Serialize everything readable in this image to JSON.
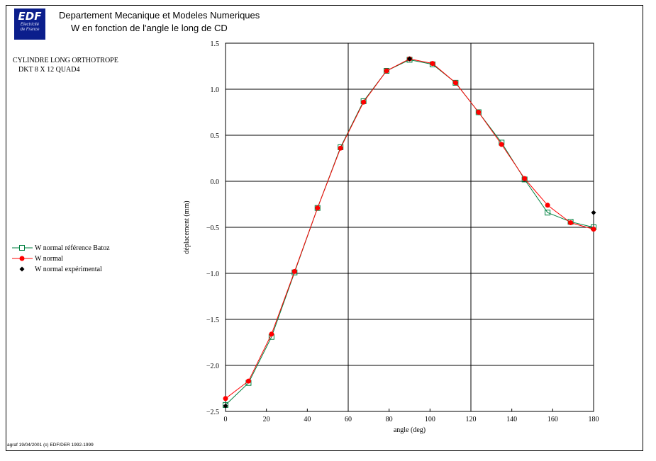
{
  "header": {
    "logo_text": "EDF",
    "logo_sub1": "Electricité",
    "logo_sub2": "de France",
    "line1": "Departement Mecanique et Modeles Numeriques",
    "line2": "W en fonction de l'angle le long de CD"
  },
  "case": {
    "line1": "CYLINDRE LONG ORTHOTROPE",
    "line2": "DKT 8 X 12 QUAD4"
  },
  "legend": {
    "items": [
      "W normal référence Batoz",
      "W normal",
      "W normal expérimental"
    ]
  },
  "footer": "agraf 19/04/2001 (c) EDF/DER 1992-1999",
  "colors": {
    "reference": "#008040",
    "normal": "#ff0000",
    "experimental": "#000000",
    "logo_bg": "#0b1e8c"
  },
  "chart_data": {
    "type": "line",
    "xlabel": "angle (deg)",
    "ylabel": "déplacement (mm)",
    "xlim": [
      0,
      180
    ],
    "ylim": [
      -2.5,
      1.5
    ],
    "xticks": [
      0,
      20,
      40,
      60,
      80,
      100,
      120,
      140,
      160,
      180
    ],
    "yticks": [
      -2.5,
      -2.0,
      -1.5,
      -1.0,
      -0.5,
      0.0,
      0.5,
      1.0,
      1.5
    ],
    "xtick_labels": [
      "0",
      "20",
      "40",
      "60",
      "80",
      "100",
      "120",
      "140",
      "160",
      "180"
    ],
    "ytick_labels": [
      "−2.5",
      "−2.0",
      "−1.5",
      "−1.0",
      "−0.5",
      "0.0",
      "0.5",
      "1.0",
      "1.5"
    ],
    "grid_x": [
      60,
      120
    ],
    "grid_y": [
      -2.0,
      -1.5,
      -1.0,
      -0.5,
      0.0,
      0.5,
      1.0
    ],
    "legend_position": "left",
    "series": [
      {
        "name": "W normal référence Batoz",
        "marker": "square-open",
        "x": [
          0,
          11.25,
          22.5,
          33.75,
          45,
          56.25,
          67.5,
          78.75,
          90,
          101.25,
          112.5,
          123.75,
          135,
          146.25,
          157.5,
          168.75,
          180
        ],
        "y": [
          -2.43,
          -2.19,
          -1.69,
          -0.99,
          -0.29,
          0.37,
          0.87,
          1.2,
          1.32,
          1.27,
          1.07,
          0.75,
          0.42,
          0.02,
          -0.34,
          -0.44,
          -0.5
        ]
      },
      {
        "name": "W normal",
        "marker": "circle-filled",
        "x": [
          0,
          11.25,
          22.5,
          33.75,
          45,
          56.25,
          67.5,
          78.75,
          90,
          101.25,
          112.5,
          123.75,
          135,
          146.25,
          157.5,
          168.75,
          180
        ],
        "y": [
          -2.36,
          -2.17,
          -1.66,
          -0.98,
          -0.29,
          0.36,
          0.86,
          1.2,
          1.33,
          1.28,
          1.07,
          0.75,
          0.4,
          0.03,
          -0.26,
          -0.45,
          -0.52
        ]
      },
      {
        "name": "W normal expérimental",
        "marker": "diamond-filled",
        "x": [
          0,
          90,
          180
        ],
        "y": [
          -2.44,
          1.33,
          -0.34
        ]
      }
    ]
  }
}
